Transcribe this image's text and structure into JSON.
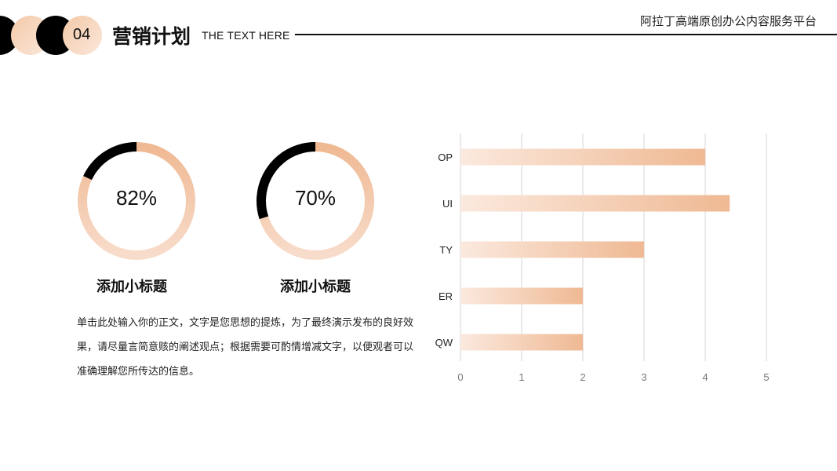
{
  "header": {
    "section_number": "04",
    "title": "营销计划",
    "subtitle": "THE TEXT HERE",
    "platform_name": "阿拉丁高端原创办公内容服务平台"
  },
  "colors": {
    "accent_peach": "#efb993",
    "accent_light": "#f8dccb",
    "dark": "#000000"
  },
  "donuts": [
    {
      "value": 82,
      "label": "82%",
      "heading": "添加小标题"
    },
    {
      "value": 70,
      "label": "70%",
      "heading": "添加小标题"
    }
  ],
  "body_text": "单击此处输入你的正文，文字是您思想的提炼，为了最终演示发布的良好效果，请尽量言简意赅的阐述观点；根据需要可酌情增减文字，以便观者可以准确理解您所传达的信息。",
  "chart_data": {
    "type": "bar",
    "orientation": "horizontal",
    "categories": [
      "OP",
      "UI",
      "TY",
      "ER",
      "QW"
    ],
    "values": [
      4,
      4.4,
      3,
      2,
      2
    ],
    "xlim": [
      0,
      5
    ],
    "xticks": [
      "0",
      "1",
      "2",
      "3",
      "4",
      "5"
    ],
    "grid": true,
    "title": "",
    "xlabel": "",
    "ylabel": ""
  }
}
